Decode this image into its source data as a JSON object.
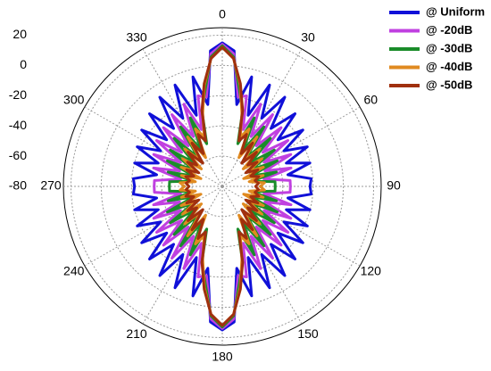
{
  "chart_data": {
    "type": "polar-line",
    "x": [
      0,
      5,
      10,
      15,
      20,
      25,
      30,
      35,
      40,
      45,
      50,
      55,
      60,
      65,
      70,
      75,
      80,
      85,
      90,
      95,
      100,
      105,
      110,
      115,
      120,
      125,
      130,
      135,
      140,
      145,
      150,
      155,
      160,
      165,
      170,
      175,
      180,
      185,
      190,
      195,
      200,
      205,
      210,
      215,
      220,
      225,
      230,
      235,
      240,
      245,
      250,
      255,
      260,
      265,
      270,
      275,
      280,
      285,
      290,
      295,
      300,
      305,
      310,
      315,
      320,
      325,
      330,
      335,
      340,
      345,
      350,
      355
    ],
    "series": [
      {
        "name": "@ Uniform",
        "color": "#1010d8",
        "values": [
          15,
          10,
          -25,
          -5,
          -30,
          -6,
          -28,
          -8,
          -30,
          -12,
          -32,
          -15,
          -33,
          -18,
          -35,
          -20,
          -36,
          -21,
          -22,
          -21,
          -36,
          -20,
          -35,
          -18,
          -33,
          -15,
          -32,
          -12,
          -30,
          -8,
          -28,
          -6,
          -30,
          -5,
          -25,
          10,
          15,
          10,
          -25,
          -5,
          -30,
          -6,
          -28,
          -8,
          -30,
          -12,
          -32,
          -15,
          -33,
          -18,
          -35,
          -20,
          -36,
          -21,
          -22,
          -21,
          -36,
          -20,
          -35,
          -18,
          -33,
          -15,
          -32,
          -12,
          -30,
          -8,
          -28,
          -6,
          -30,
          -5,
          -25,
          10
        ]
      },
      {
        "name": "@ -20dB",
        "color": "#c040e0",
        "values": [
          14,
          8,
          -20,
          -18,
          -40,
          -20,
          -42,
          -22,
          -45,
          -25,
          -45,
          -27,
          -48,
          -30,
          -50,
          -33,
          -52,
          -35,
          -35,
          -35,
          -52,
          -33,
          -50,
          -30,
          -48,
          -27,
          -45,
          -25,
          -45,
          -22,
          -42,
          -20,
          -40,
          -18,
          -20,
          8,
          14,
          8,
          -20,
          -18,
          -40,
          -20,
          -42,
          -22,
          -45,
          -25,
          -45,
          -27,
          -48,
          -30,
          -50,
          -33,
          -52,
          -35,
          -35,
          -35,
          -52,
          -33,
          -50,
          -30,
          -48,
          -27,
          -45,
          -25,
          -45,
          -22,
          -42,
          -20,
          -40,
          -18,
          -20,
          8
        ]
      },
      {
        "name": "@ -30dB",
        "color": "#1a8c2a",
        "values": [
          13,
          6,
          -15,
          -28,
          -50,
          -30,
          -52,
          -32,
          -55,
          -35,
          -55,
          -38,
          -58,
          -40,
          -60,
          -43,
          -60,
          -45,
          -45,
          -45,
          -60,
          -43,
          -60,
          -40,
          -58,
          -38,
          -55,
          -35,
          -55,
          -32,
          -52,
          -30,
          -50,
          -28,
          -15,
          6,
          13,
          6,
          -15,
          -28,
          -50,
          -30,
          -52,
          -32,
          -55,
          -35,
          -55,
          -38,
          -58,
          -40,
          -60,
          -43,
          -60,
          -45,
          -45,
          -45,
          -60,
          -43,
          -60,
          -40,
          -58,
          -38,
          -55,
          -35,
          -55,
          -32,
          -52,
          -30,
          -50,
          -28,
          -15,
          6
        ]
      },
      {
        "name": "@ -40dB",
        "color": "#e08a20",
        "values": [
          12,
          5,
          -12,
          -30,
          -45,
          -38,
          -58,
          -40,
          -58,
          -45,
          -62,
          -48,
          -60,
          -50,
          -65,
          -52,
          -62,
          -52,
          -55,
          -52,
          -62,
          -52,
          -65,
          -50,
          -60,
          -48,
          -62,
          -45,
          -58,
          -40,
          -58,
          -38,
          -45,
          -30,
          -12,
          5,
          12,
          5,
          -12,
          -30,
          -45,
          -38,
          -58,
          -40,
          -58,
          -45,
          -62,
          -48,
          -60,
          -50,
          -65,
          -52,
          -62,
          -52,
          -55,
          -52,
          -62,
          -52,
          -65,
          -50,
          -60,
          -48,
          -62,
          -45,
          -58,
          -40,
          -58,
          -38,
          -45,
          -30,
          -12,
          5
        ]
      },
      {
        "name": "@ -50dB",
        "color": "#a0300e",
        "values": [
          12,
          5,
          -11,
          -28,
          -48,
          -42,
          -55,
          -45,
          -60,
          -48,
          -58,
          -52,
          -62,
          -54,
          -60,
          -55,
          -58,
          -56,
          -58,
          -56,
          -58,
          -55,
          -60,
          -54,
          -62,
          -52,
          -58,
          -48,
          -60,
          -45,
          -55,
          -42,
          -48,
          -28,
          -11,
          5,
          12,
          5,
          -11,
          -28,
          -48,
          -42,
          -55,
          -45,
          -60,
          -48,
          -58,
          -52,
          -62,
          -54,
          -60,
          -55,
          -58,
          -56,
          -58,
          -56,
          -58,
          -55,
          -60,
          -54,
          -62,
          -52,
          -58,
          -48,
          -60,
          -45,
          -55,
          -42,
          -48,
          -28,
          -11,
          5
        ]
      }
    ],
    "rlim": [
      -80,
      25
    ],
    "rticks": [
      -80,
      -60,
      -40,
      -20,
      0,
      20
    ],
    "thetaticks": [
      0,
      30,
      60,
      90,
      120,
      150,
      180,
      210,
      240,
      270,
      300,
      330
    ],
    "grid": true
  }
}
